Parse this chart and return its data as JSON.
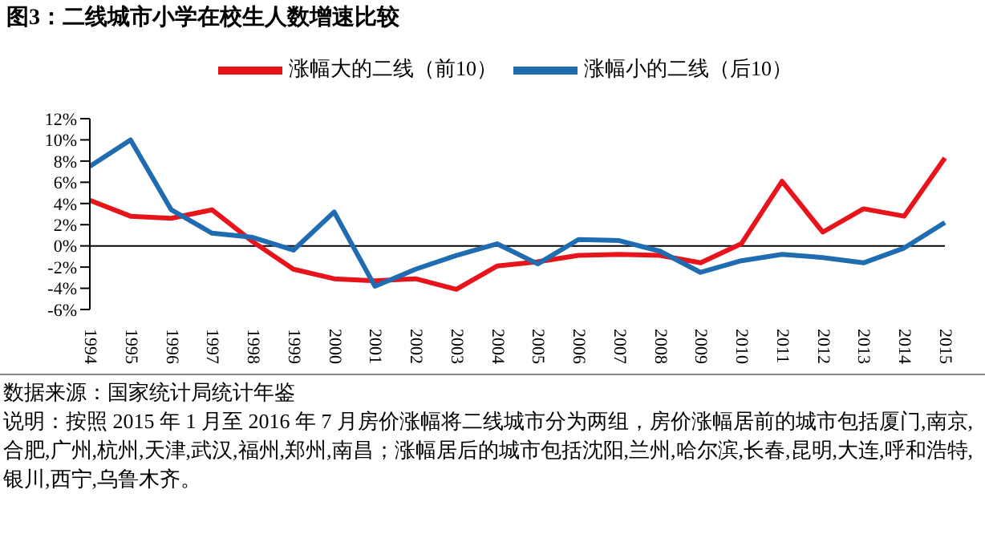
{
  "chart_data": {
    "type": "line",
    "title": "图3：二线城市小学在校生人数增速比较",
    "categories": [
      "1994",
      "1995",
      "1996",
      "1997",
      "1998",
      "1999",
      "2000",
      "2001",
      "2002",
      "2003",
      "2004",
      "2005",
      "2006",
      "2007",
      "2008",
      "2009",
      "2010",
      "2011",
      "2012",
      "2013",
      "2014",
      "2015"
    ],
    "series": [
      {
        "name": "涨幅大的二线（前10）",
        "color": "#e8141c",
        "values": [
          4.3,
          2.8,
          2.6,
          3.4,
          0.4,
          -2.2,
          -3.1,
          -3.3,
          -3.1,
          -4.1,
          -1.9,
          -1.5,
          -0.9,
          -0.8,
          -0.9,
          -1.6,
          0.2,
          6.1,
          1.3,
          3.5,
          2.8,
          8.3
        ]
      },
      {
        "name": "涨幅小的二线（后10）",
        "color": "#1f6cb0",
        "values": [
          7.5,
          10.0,
          3.4,
          1.2,
          0.8,
          -0.4,
          3.2,
          -3.8,
          -2.2,
          -0.9,
          0.2,
          -1.7,
          0.6,
          0.5,
          -0.5,
          -2.5,
          -1.4,
          -0.8,
          -1.1,
          -1.6,
          -0.2,
          2.2
        ]
      }
    ],
    "ylim": [
      -6,
      12
    ],
    "yticks": [
      {
        "value": -6,
        "label": "-6%"
      },
      {
        "value": -4,
        "label": "-4%"
      },
      {
        "value": -2,
        "label": "-2%"
      },
      {
        "value": 0,
        "label": "0%"
      },
      {
        "value": 2,
        "label": "2%"
      },
      {
        "value": 4,
        "label": "4%"
      },
      {
        "value": 6,
        "label": "6%"
      },
      {
        "value": 8,
        "label": "8%"
      },
      {
        "value": 10,
        "label": "10%"
      },
      {
        "value": 12,
        "label": "12%"
      }
    ],
    "ref_lines": [
      {
        "axis": "y",
        "value": 0,
        "color": "#000000"
      }
    ],
    "grid": false,
    "legend": "top",
    "marker": "none",
    "line_style": "solid",
    "annotations": [
      "数据来源：国家统计局统计年鉴",
      "说明：按照 2015 年 1 月至 2016 年 7 月房价涨幅将二线城市分为两组，房价涨幅居前的城市包括厦门,南京,合肥,广州,杭州,天津,武汉,福州,郑州,南昌；涨幅居后的城市包括沈阳,兰州,哈尔滨,长春,昆明,大连,呼和浩特,银川,西宁,乌鲁木齐。"
    ]
  }
}
